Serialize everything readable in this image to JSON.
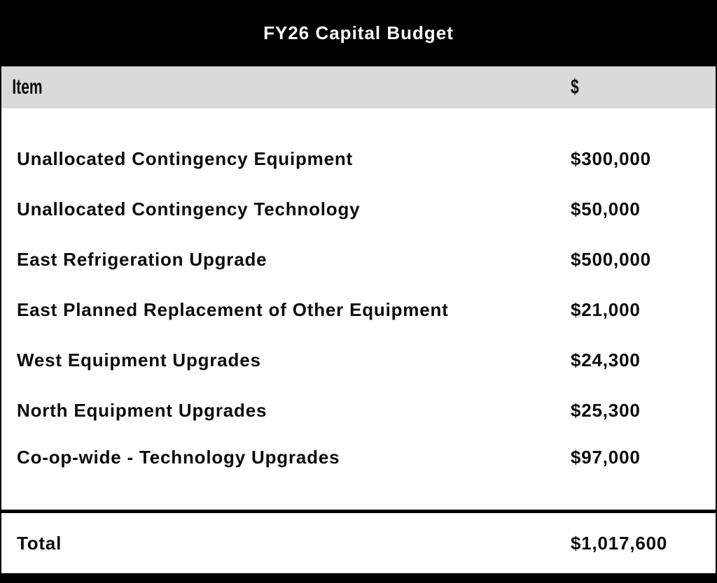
{
  "table": {
    "title": "FY26 Capital Budget",
    "columns": {
      "item": "Item",
      "amount": "$"
    },
    "rows": [
      {
        "item": "Unallocated Contingency Equipment",
        "amount": "$300,000"
      },
      {
        "item": "Unallocated Contingency Technology",
        "amount": "$50,000"
      },
      {
        "item": "East Refrigeration Upgrade",
        "amount": "$500,000"
      },
      {
        "item": "East Planned Replacement of Other Equipment",
        "amount": "$21,000"
      },
      {
        "item": "West Equipment Upgrades",
        "amount": "$24,300"
      },
      {
        "item": "North Equipment Upgrades",
        "amount": "$25,300"
      },
      {
        "item": "Co-op-wide - Technology Upgrades",
        "amount": "$97,000"
      }
    ],
    "total": {
      "label": "Total",
      "amount": "$1,017,600"
    }
  },
  "colors": {
    "title_bar_bg": "#000000",
    "title_text": "#ffffff",
    "header_row_bg": "#d9d9d9",
    "body_bg": "#ffffff",
    "text": "#0b0b0b",
    "border": "#000000"
  },
  "chart_data": {
    "type": "table",
    "title": "FY26 Capital Budget",
    "columns": [
      "Item",
      "$"
    ],
    "rows": [
      [
        "Unallocated Contingency Equipment",
        300000
      ],
      [
        "Unallocated Contingency Technology",
        50000
      ],
      [
        "East Refrigeration Upgrade",
        500000
      ],
      [
        "East Planned Replacement of Other Equipment",
        21000
      ],
      [
        "West Equipment Upgrades",
        24300
      ],
      [
        "North Equipment Upgrades",
        25300
      ],
      [
        "Co-op-wide - Technology Upgrades",
        97000
      ]
    ],
    "total": [
      "Total",
      1017600
    ]
  }
}
